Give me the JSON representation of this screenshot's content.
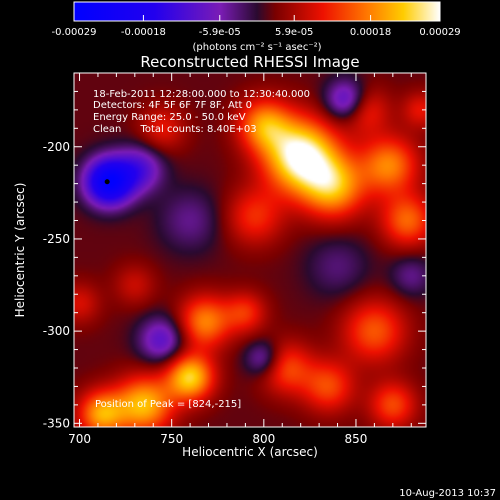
{
  "chart_data": {
    "type": "heatmap",
    "title": "Reconstructed RHESSI Image",
    "xlabel": "Heliocentric X (arcsec)",
    "ylabel": "Heliocentric Y (arcsec)",
    "xlim": [
      697,
      888
    ],
    "ylim": [
      -352,
      -160
    ],
    "x_ticks": [
      700,
      750,
      800,
      850
    ],
    "y_ticks": [
      -200,
      -250,
      -300,
      -350
    ],
    "colorbar": {
      "range": [
        -0.00029,
        0.00029
      ],
      "ticks": [
        "-0.00029",
        "-0.00018",
        "-5.9e-05",
        "5.9e-05",
        "0.00018",
        "0.00029"
      ],
      "label": "(photons cm⁻² s⁻¹ asec⁻²)",
      "colormap": "blue-purple-red-yellow-white"
    },
    "annotations": [
      "18-Feb-2011 12:28:00.000 to 12:30:40.000",
      "Detectors: 4F 5F 6F 7F 8F, Att 0",
      "Energy Range: 25.0 - 50.0 keV",
      "Clean      Total counts: 8.40E+03"
    ],
    "peak_label": "Position of Peak = [824,-215]",
    "peak": {
      "x": 824,
      "y": -215
    },
    "blobs": [
      {
        "x": 820,
        "y": -205,
        "amp": 0.00028,
        "r": 14
      },
      {
        "x": 838,
        "y": -222,
        "amp": 0.00018,
        "r": 12
      },
      {
        "x": 800,
        "y": -188,
        "amp": 0.00016,
        "r": 10
      },
      {
        "x": 868,
        "y": -210,
        "amp": 0.00016,
        "r": 11
      },
      {
        "x": 878,
        "y": -240,
        "amp": 0.00014,
        "r": 10
      },
      {
        "x": 795,
        "y": -238,
        "amp": 0.0001,
        "r": 11
      },
      {
        "x": 855,
        "y": -180,
        "amp": 0.0001,
        "r": 9
      },
      {
        "x": 860,
        "y": -300,
        "amp": 0.00013,
        "r": 12
      },
      {
        "x": 812,
        "y": -320,
        "amp": 0.00012,
        "r": 10
      },
      {
        "x": 835,
        "y": -330,
        "amp": 0.00012,
        "r": 10
      },
      {
        "x": 760,
        "y": -325,
        "amp": 0.00022,
        "r": 9
      },
      {
        "x": 768,
        "y": -295,
        "amp": 0.00016,
        "r": 10
      },
      {
        "x": 790,
        "y": -290,
        "amp": 0.0001,
        "r": 8
      },
      {
        "x": 735,
        "y": -340,
        "amp": 0.0002,
        "r": 11
      },
      {
        "x": 712,
        "y": -345,
        "amp": 0.00018,
        "r": 9
      },
      {
        "x": 870,
        "y": -340,
        "amp": 0.00012,
        "r": 9
      },
      {
        "x": 745,
        "y": -190,
        "amp": 8e-05,
        "r": 9
      },
      {
        "x": 730,
        "y": -275,
        "amp": 6e-05,
        "r": 8
      },
      {
        "x": 700,
        "y": -285,
        "amp": 7e-05,
        "r": 8
      },
      {
        "x": 885,
        "y": -180,
        "amp": 8e-05,
        "r": 7
      },
      {
        "x": 716,
        "y": -219,
        "amp": -0.00029,
        "r": 9
      },
      {
        "x": 733,
        "y": -212,
        "amp": -0.00012,
        "r": 9
      },
      {
        "x": 745,
        "y": -305,
        "amp": -0.00012,
        "r": 9
      },
      {
        "x": 845,
        "y": -175,
        "amp": -0.00014,
        "r": 8
      },
      {
        "x": 800,
        "y": -315,
        "amp": -0.0001,
        "r": 7
      },
      {
        "x": 760,
        "y": -240,
        "amp": -6e-05,
        "r": 12
      },
      {
        "x": 840,
        "y": -265,
        "amp": -5e-05,
        "r": 12
      },
      {
        "x": 880,
        "y": -270,
        "amp": -6e-05,
        "r": 8
      }
    ],
    "min_marker": {
      "x": 715,
      "y": -219
    }
  },
  "footer": {
    "date": "10-Aug-2013 10:37"
  }
}
